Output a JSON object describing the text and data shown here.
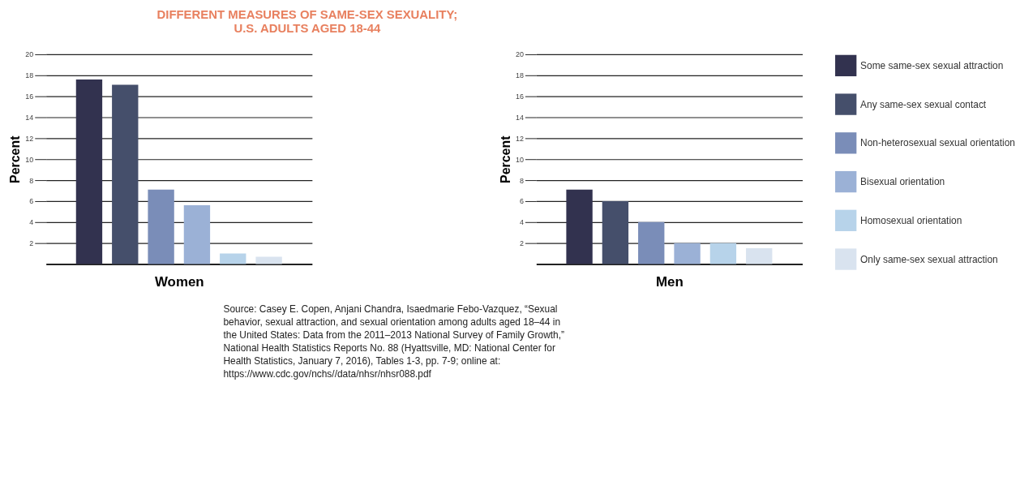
{
  "chart_data": [
    {
      "type": "bar",
      "title": "DIFFERENT MEASURES OF SAME-SEX SEXUALITY;\nU.S. ADULTS AGED 18-44",
      "xlabel": "Women",
      "ylabel": "Percent",
      "categories": [
        null
      ],
      "series": [
        {
          "color": "#32324f",
          "values": [
            17.6
          ]
        },
        {
          "color": "#454f6b",
          "values": [
            17.1
          ]
        },
        {
          "color": "#7a8db8",
          "values": [
            7.1
          ]
        },
        {
          "color": "#9bb1d6",
          "values": [
            5.6
          ]
        },
        {
          "color": "#b7d3ea",
          "values": [
            1.0
          ]
        },
        {
          "color": "#d9e3ef",
          "values": [
            0.7
          ]
        }
      ],
      "ylim": [
        0,
        20
      ],
      "yticks": [
        2,
        4,
        6,
        8,
        10,
        12,
        14,
        16,
        18,
        20
      ],
      "grid": "y",
      "legend": false,
      "annotations": [
        "Source: Casey E. Copen, Anjani Chandra, Isaedmarie Febo-Vazquez, “Sexual\nbehavior, sexual attraction, and sexual orientation among adults aged 18–44 in\nthe United States: Data from the 2011–2013 National Survey of Family Growth,”\nNational Health Statistics Reports No. 88 (Hyattsville, MD: National Center for\nHealth Statistics, January 7, 2016), Tables 1-3, pp. 7-9; online at:\nhttps://www.cdc.gov/nchs//data/nhsr/nhsr088.pdf"
      ]
    },
    {
      "type": "bar",
      "xlabel": "Men",
      "ylabel": "Percent",
      "categories": [
        null
      ],
      "series": [
        {
          "name": "Some same-sex sexual attraction",
          "color": "#32324f",
          "values": [
            7.1
          ]
        },
        {
          "name": "Any same-sex sexual contact",
          "color": "#454f6b",
          "values": [
            6.0
          ]
        },
        {
          "name": "Non-heterosexual sexual orientation",
          "color": "#7a8db8",
          "values": [
            4.0
          ]
        },
        {
          "name": "Bisexual orientation",
          "color": "#9bb1d6",
          "values": [
            2.0
          ]
        },
        {
          "name": "Homosexual orientation",
          "color": "#b7d3ea",
          "values": [
            2.0
          ]
        },
        {
          "name": "Only same-sex sexual attraction",
          "color": "#d9e3ef",
          "values": [
            1.5
          ]
        }
      ],
      "ylim": [
        0,
        20
      ],
      "yticks": [
        2,
        4,
        6,
        8,
        10,
        12,
        14,
        16,
        18,
        20
      ],
      "grid": "y",
      "legend": "right"
    }
  ]
}
